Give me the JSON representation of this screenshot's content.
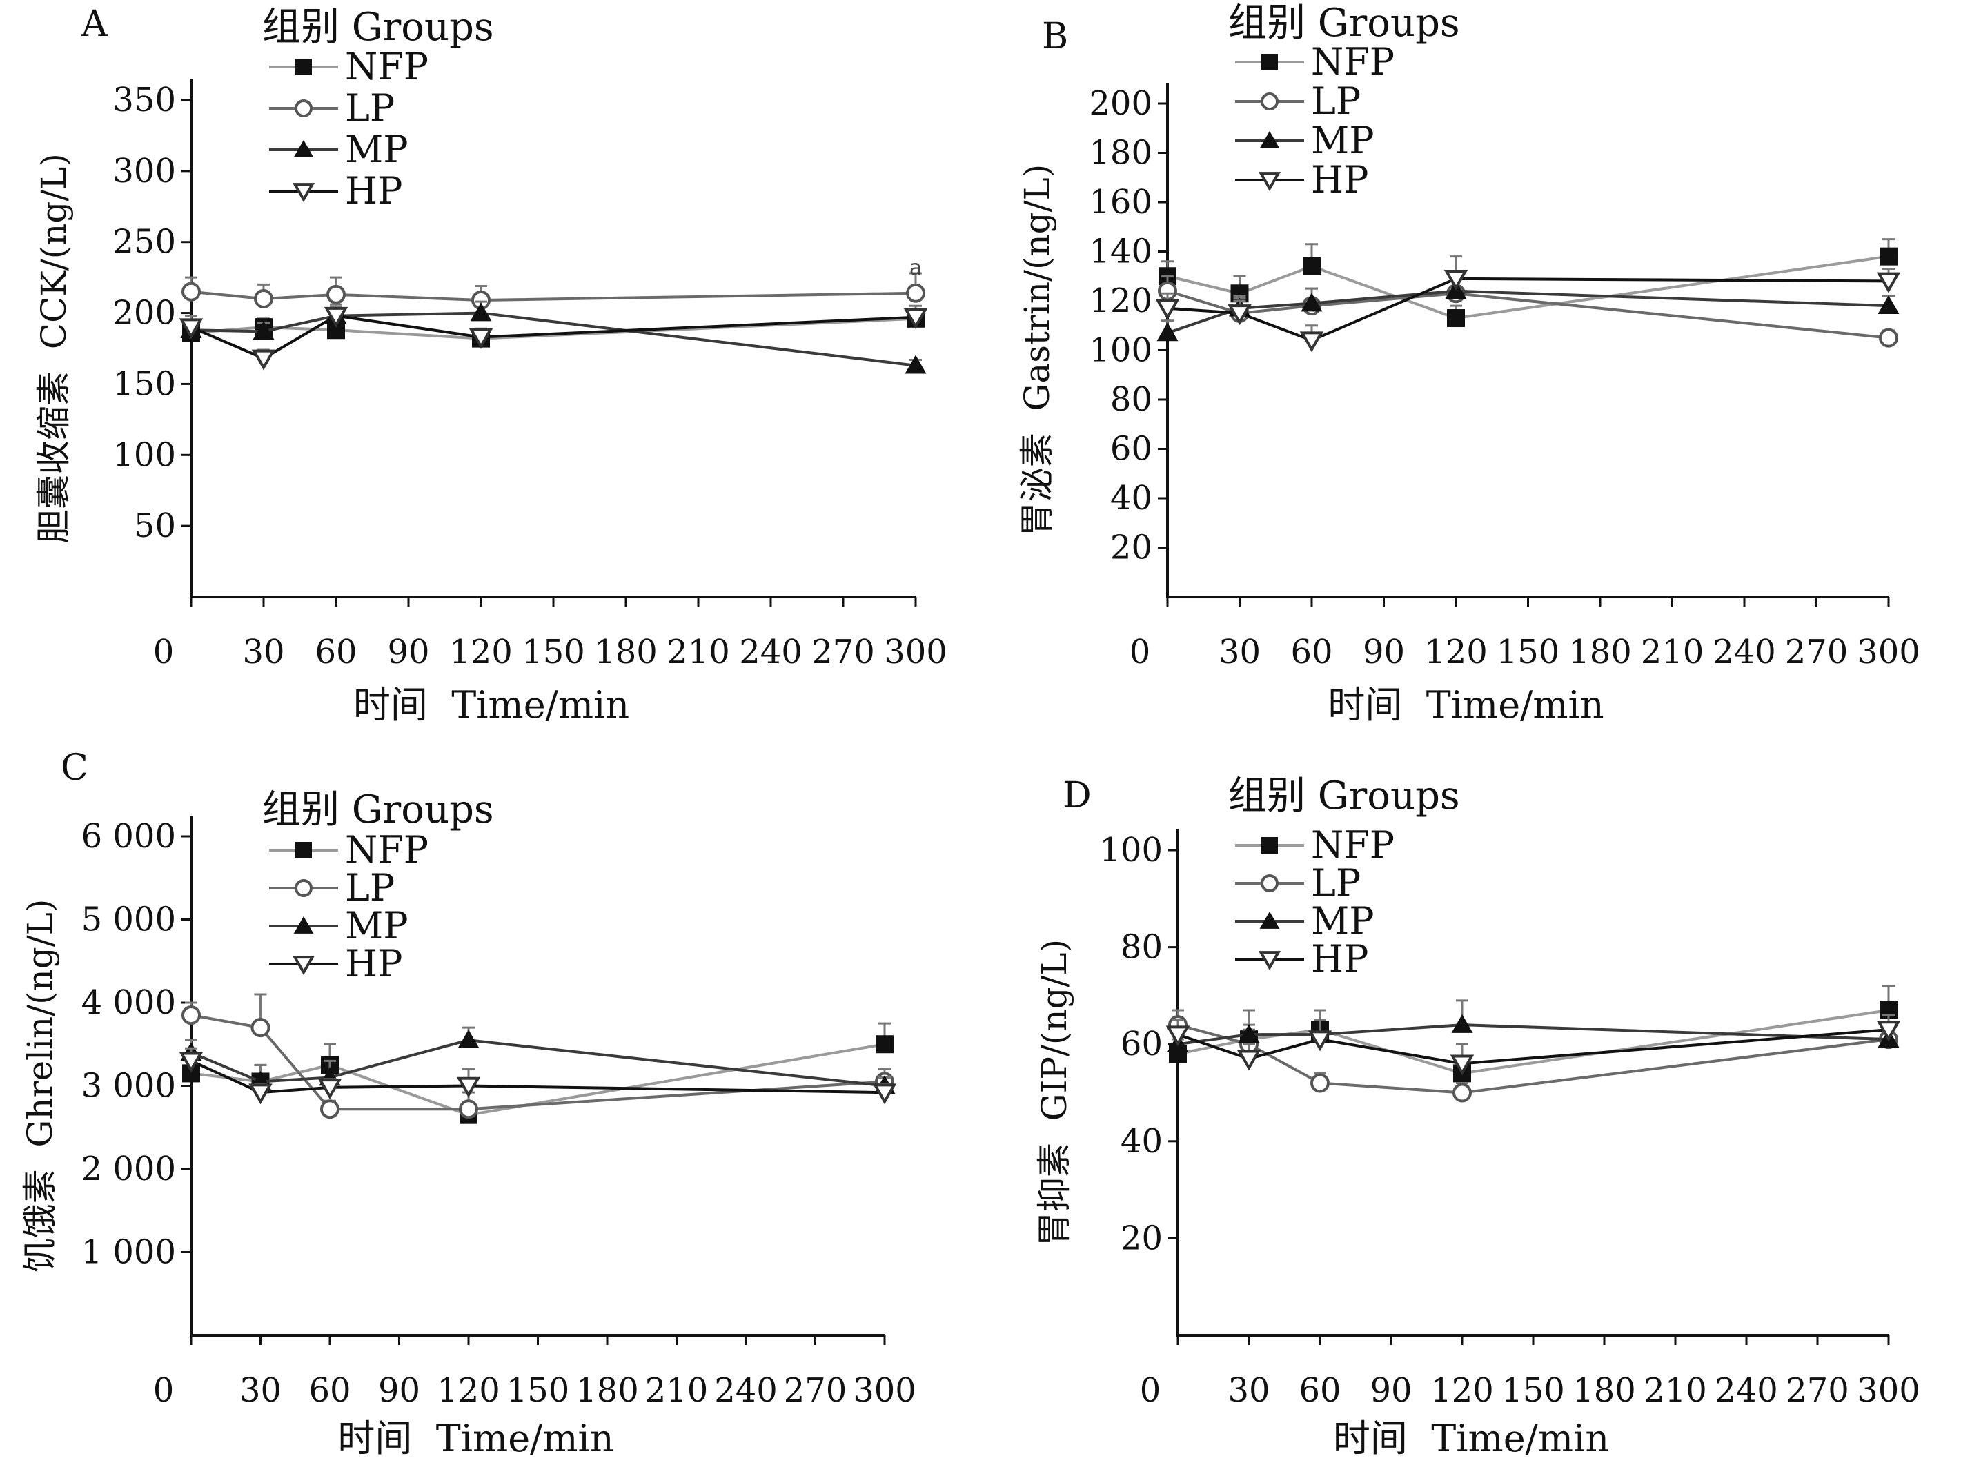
{
  "series_styles": {
    "NFP": {
      "marker": "square-filled",
      "color": "#9a9a9a"
    },
    "LP": {
      "marker": "circle-open",
      "color": "#6a6a6a"
    },
    "MP": {
      "marker": "triangle-filled",
      "color": "#3a3a3a"
    },
    "HP": {
      "marker": "triangle-down-open",
      "color": "#111111"
    }
  },
  "chart_data": [
    {
      "panel": "A",
      "type": "line",
      "legend_title": "组别 Groups",
      "xlabel": "时间  Time/min",
      "ylabel": "胆囊收缩素  CCK/(ng/L)",
      "xlim": [
        0,
        300
      ],
      "ylim": [
        0,
        350
      ],
      "xticks": [
        0,
        30,
        60,
        90,
        120,
        150,
        180,
        210,
        240,
        270,
        300
      ],
      "yticks": [
        50,
        100,
        150,
        200,
        250,
        300,
        350
      ],
      "ytick_labels": [
        "50",
        "100",
        "150",
        "200",
        "250",
        "300",
        "350"
      ],
      "x": [
        0,
        30,
        60,
        120,
        300
      ],
      "series": [
        {
          "name": "NFP",
          "values": [
            186,
            190,
            188,
            182,
            196
          ],
          "err": [
            6,
            6,
            6,
            6,
            6
          ]
        },
        {
          "name": "LP",
          "values": [
            215,
            210,
            213,
            209,
            214
          ],
          "err": [
            10,
            10,
            12,
            10,
            14
          ]
        },
        {
          "name": "MP",
          "values": [
            188,
            187,
            198,
            200,
            163
          ],
          "err": [
            6,
            6,
            6,
            8,
            4
          ]
        },
        {
          "name": "HP",
          "values": [
            190,
            168,
            198,
            183,
            197
          ],
          "err": [
            8,
            6,
            8,
            6,
            8
          ]
        }
      ],
      "annotations": [
        {
          "x": 300,
          "y": 227,
          "text": "a"
        }
      ]
    },
    {
      "panel": "B",
      "type": "line",
      "legend_title": "组别 Groups",
      "xlabel": "时间  Time/min",
      "ylabel": "胃泌素  Gastrin/(ng/L)",
      "xlim": [
        0,
        300
      ],
      "ylim": [
        0,
        200
      ],
      "xticks": [
        0,
        30,
        60,
        90,
        120,
        150,
        180,
        210,
        240,
        270,
        300
      ],
      "yticks": [
        20,
        40,
        60,
        80,
        100,
        120,
        140,
        160,
        180,
        200
      ],
      "ytick_labels": [
        "20",
        "40",
        "60",
        "80",
        "100",
        "120",
        "140",
        "160",
        "180",
        "200"
      ],
      "x": [
        0,
        30,
        60,
        120,
        300
      ],
      "series": [
        {
          "name": "NFP",
          "values": [
            130,
            123,
            134,
            113,
            138
          ],
          "err": [
            6,
            7,
            9,
            5,
            7
          ]
        },
        {
          "name": "LP",
          "values": [
            124,
            115,
            118,
            123,
            105
          ],
          "err": [
            6,
            6,
            7,
            7,
            3
          ]
        },
        {
          "name": "MP",
          "values": [
            107,
            117,
            119,
            124,
            118
          ],
          "err": [
            5,
            5,
            6,
            6,
            4
          ]
        },
        {
          "name": "HP",
          "values": [
            117,
            115,
            104,
            129,
            128
          ],
          "err": [
            6,
            5,
            6,
            9,
            5
          ]
        }
      ]
    },
    {
      "panel": "C",
      "type": "line",
      "legend_title": "组别 Groups",
      "xlabel": "时间  Time/min",
      "ylabel": "饥饿素  Ghrelin/(ng/L)",
      "xlim": [
        0,
        300
      ],
      "ylim": [
        0,
        6000
      ],
      "xticks": [
        0,
        30,
        60,
        90,
        120,
        150,
        180,
        210,
        240,
        270,
        300
      ],
      "yticks": [
        1000,
        2000,
        3000,
        4000,
        5000,
        6000
      ],
      "ytick_labels": [
        "1 000",
        "2 000",
        "3 000",
        "4 000",
        "5 000",
        "6 000"
      ],
      "x": [
        0,
        30,
        60,
        120,
        300
      ],
      "series": [
        {
          "name": "NFP",
          "values": [
            3150,
            3050,
            3250,
            2650,
            3500
          ],
          "err": [
            150,
            200,
            250,
            100,
            250
          ]
        },
        {
          "name": "LP",
          "values": [
            3850,
            3700,
            2720,
            2720,
            3050
          ],
          "err": [
            150,
            400,
            100,
            200,
            150
          ]
        },
        {
          "name": "MP",
          "values": [
            3400,
            3050,
            3100,
            3550,
            3000
          ],
          "err": [
            150,
            200,
            200,
            150,
            100
          ]
        },
        {
          "name": "HP",
          "values": [
            3300,
            2920,
            2980,
            3000,
            2920
          ],
          "err": [
            150,
            100,
            100,
            200,
            100
          ]
        }
      ]
    },
    {
      "panel": "D",
      "type": "line",
      "legend_title": "组别 Groups",
      "xlabel": "时间  Time/min",
      "ylabel": "胃抑素  GIP/(ng/L)",
      "xlim": [
        0,
        300
      ],
      "ylim": [
        0,
        100
      ],
      "xticks": [
        0,
        30,
        60,
        90,
        120,
        150,
        180,
        210,
        240,
        270,
        300
      ],
      "yticks": [
        20,
        40,
        60,
        80,
        100
      ],
      "ytick_labels": [
        "20",
        "40",
        "60",
        "80",
        "100"
      ],
      "x": [
        0,
        30,
        60,
        120,
        300
      ],
      "series": [
        {
          "name": "NFP",
          "values": [
            58,
            61,
            63,
            54,
            67
          ],
          "err": [
            3,
            3,
            4,
            3,
            5
          ]
        },
        {
          "name": "LP",
          "values": [
            64,
            60,
            52,
            50,
            61
          ],
          "err": [
            3,
            3,
            2,
            2,
            2
          ]
        },
        {
          "name": "MP",
          "values": [
            60,
            62,
            62,
            64,
            61
          ],
          "err": [
            3,
            5,
            5,
            5,
            2
          ]
        },
        {
          "name": "HP",
          "values": [
            62,
            57,
            61,
            56,
            63
          ],
          "err": [
            3,
            3,
            4,
            4,
            3
          ]
        }
      ]
    }
  ]
}
